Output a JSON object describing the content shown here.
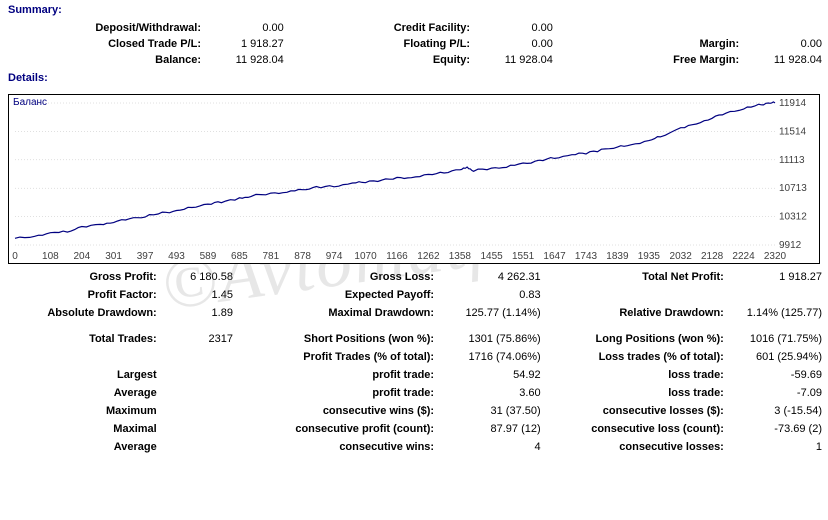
{
  "watermark": "©Avtomatfx.com",
  "summary": {
    "title": "Summary:",
    "rows": [
      {
        "c1l": "Deposit/Withdrawal:",
        "c1v": "0.00",
        "c2l": "Credit Facility:",
        "c2v": "0.00",
        "c3l": "",
        "c3v": ""
      },
      {
        "c1l": "Closed Trade P/L:",
        "c1v": "1 918.27",
        "c2l": "Floating P/L:",
        "c2v": "0.00",
        "c3l": "Margin:",
        "c3v": "0.00"
      },
      {
        "c1l": "Balance:",
        "c1v": "11 928.04",
        "c2l": "Equity:",
        "c2v": "11 928.04",
        "c3l": "Free Margin:",
        "c3v": "11 928.04"
      }
    ]
  },
  "details": {
    "title": "Details:"
  },
  "chart": {
    "label": "Баланс",
    "line_color": "#000080",
    "grid_color": "#c0c0c0",
    "xticks": [
      "0",
      "108",
      "204",
      "301",
      "397",
      "493",
      "589",
      "685",
      "781",
      "878",
      "974",
      "1070",
      "1166",
      "1262",
      "1358",
      "1455",
      "1551",
      "1647",
      "1743",
      "1839",
      "1935",
      "2032",
      "2128",
      "2224",
      "2320"
    ],
    "yticks": [
      "9912",
      "10312",
      "10713",
      "11113",
      "11514",
      "11914"
    ],
    "ymin": 9912,
    "ymax": 11914,
    "xmax": 2320,
    "data": [
      [
        0,
        10000
      ],
      [
        60,
        10040
      ],
      [
        108,
        10080
      ],
      [
        160,
        10110
      ],
      [
        204,
        10160
      ],
      [
        260,
        10200
      ],
      [
        301,
        10230
      ],
      [
        350,
        10280
      ],
      [
        397,
        10320
      ],
      [
        450,
        10360
      ],
      [
        493,
        10400
      ],
      [
        540,
        10440
      ],
      [
        589,
        10490
      ],
      [
        630,
        10520
      ],
      [
        685,
        10560
      ],
      [
        720,
        10600
      ],
      [
        781,
        10640
      ],
      [
        830,
        10660
      ],
      [
        878,
        10700
      ],
      [
        920,
        10720
      ],
      [
        974,
        10740
      ],
      [
        1030,
        10780
      ],
      [
        1070,
        10800
      ],
      [
        1120,
        10830
      ],
      [
        1166,
        10850
      ],
      [
        1210,
        10870
      ],
      [
        1262,
        10900
      ],
      [
        1310,
        10940
      ],
      [
        1358,
        10970
      ],
      [
        1380,
        11000
      ],
      [
        1400,
        10960
      ],
      [
        1455,
        10990
      ],
      [
        1500,
        11020
      ],
      [
        1551,
        11060
      ],
      [
        1600,
        11100
      ],
      [
        1647,
        11140
      ],
      [
        1700,
        11180
      ],
      [
        1743,
        11210
      ],
      [
        1790,
        11250
      ],
      [
        1839,
        11290
      ],
      [
        1880,
        11330
      ],
      [
        1935,
        11380
      ],
      [
        1970,
        11450
      ],
      [
        2032,
        11550
      ],
      [
        2080,
        11620
      ],
      [
        2128,
        11700
      ],
      [
        2170,
        11770
      ],
      [
        2224,
        11840
      ],
      [
        2270,
        11880
      ],
      [
        2300,
        11920
      ],
      [
        2320,
        11914
      ]
    ]
  },
  "stats": {
    "rows": [
      {
        "c1l": "Gross Profit:",
        "c1v": "6 180.58",
        "c2l": "Gross Loss:",
        "c2v": "4 262.31",
        "c3l": "Total Net Profit:",
        "c3v": "1 918.27"
      },
      {
        "c1l": "Profit Factor:",
        "c1v": "1.45",
        "c2l": "Expected Payoff:",
        "c2v": "0.83",
        "c3l": "",
        "c3v": ""
      },
      {
        "c1l": "Absolute Drawdown:",
        "c1v": "1.89",
        "c2l": "Maximal Drawdown:",
        "c2v": "125.77 (1.14%)",
        "c3l": "Relative Drawdown:",
        "c3v": "1.14% (125.77)"
      },
      {
        "spacer": true
      },
      {
        "c1l": "Total Trades:",
        "c1v": "2317",
        "c2l": "Short Positions (won %):",
        "c2v": "1301 (75.86%)",
        "c3l": "Long Positions (won %):",
        "c3v": "1016 (71.75%)"
      },
      {
        "c1l": "",
        "c1v": "",
        "c2l": "Profit Trades (% of total):",
        "c2v": "1716 (74.06%)",
        "c3l": "Loss trades (% of total):",
        "c3v": "601 (25.94%)"
      },
      {
        "c1l": "Largest",
        "c1v": "",
        "c2l": "profit trade:",
        "c2v": "54.92",
        "c3l": "loss trade:",
        "c3v": "-59.69"
      },
      {
        "c1l": "Average",
        "c1v": "",
        "c2l": "profit trade:",
        "c2v": "3.60",
        "c3l": "loss trade:",
        "c3v": "-7.09"
      },
      {
        "c1l": "Maximum",
        "c1v": "",
        "c2l": "consecutive wins ($):",
        "c2v": "31 (37.50)",
        "c3l": "consecutive losses ($):",
        "c3v": "3 (-15.54)"
      },
      {
        "c1l": "Maximal",
        "c1v": "",
        "c2l": "consecutive profit (count):",
        "c2v": "87.97 (12)",
        "c3l": "consecutive loss (count):",
        "c3v": "-73.69 (2)"
      },
      {
        "c1l": "Average",
        "c1v": "",
        "c2l": "consecutive wins:",
        "c2v": "4",
        "c3l": "consecutive losses:",
        "c3v": "1"
      }
    ]
  }
}
